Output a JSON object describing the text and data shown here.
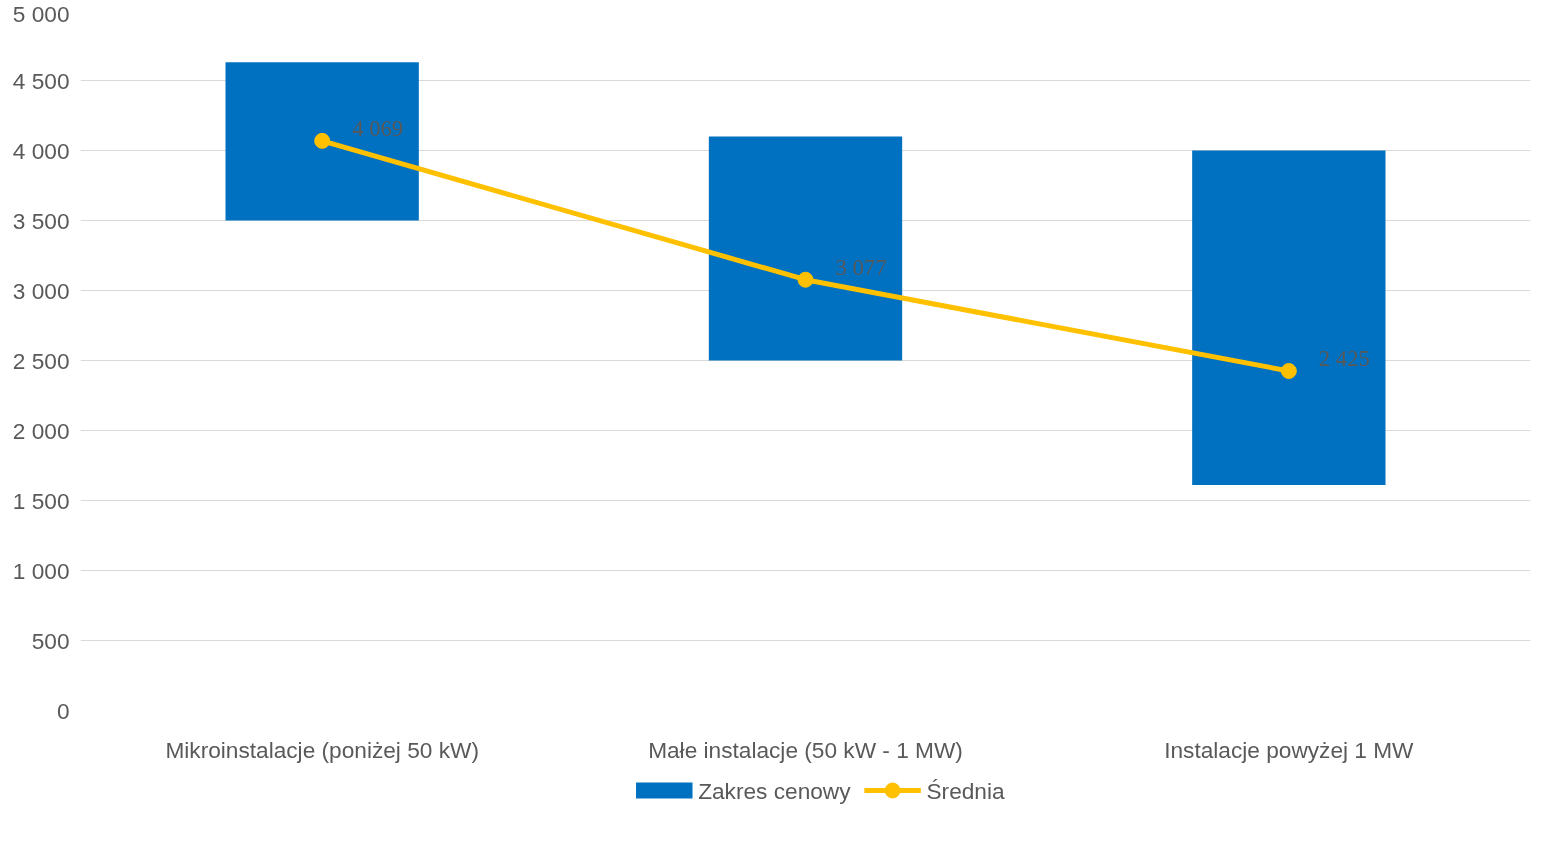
{
  "chart_data": {
    "type": "bar",
    "categories": [
      "Mikroinstalacje (poniżej 50 kW)",
      "Małe instalacje (50 kW - 1 MW)",
      "Instalacje powyżej 1 MW"
    ],
    "series": [
      {
        "name": "Zakres cenowy",
        "color": "#0070c0",
        "base": [
          3500,
          2500,
          1610
        ],
        "values": [
          1130,
          1600,
          2390
        ]
      },
      {
        "name": "Średnia",
        "type": "line",
        "color": "#ffc000",
        "marker": "circle",
        "values": [
          4069,
          3077,
          2425
        ],
        "value_labels": [
          "4 069",
          "3 077",
          "2 425"
        ]
      }
    ],
    "ylim": [
      0,
      5000
    ],
    "yticks": [
      0,
      500,
      {
        "value": 1000,
        "label": "1 000"
      },
      {
        "value": 1500,
        "label": "1 500"
      },
      {
        "value": 2000,
        "label": "2 000"
      },
      {
        "value": 2500,
        "label": "2 500"
      },
      {
        "value": 3000,
        "label": "3 000"
      },
      {
        "value": 3500,
        "label": "3 500"
      },
      {
        "value": 4000,
        "label": "4 000"
      },
      {
        "value": 4500,
        "label": "4 500"
      },
      {
        "value": 5000,
        "label": "5 000"
      }
    ],
    "grid": "y",
    "legend": "bottom"
  }
}
